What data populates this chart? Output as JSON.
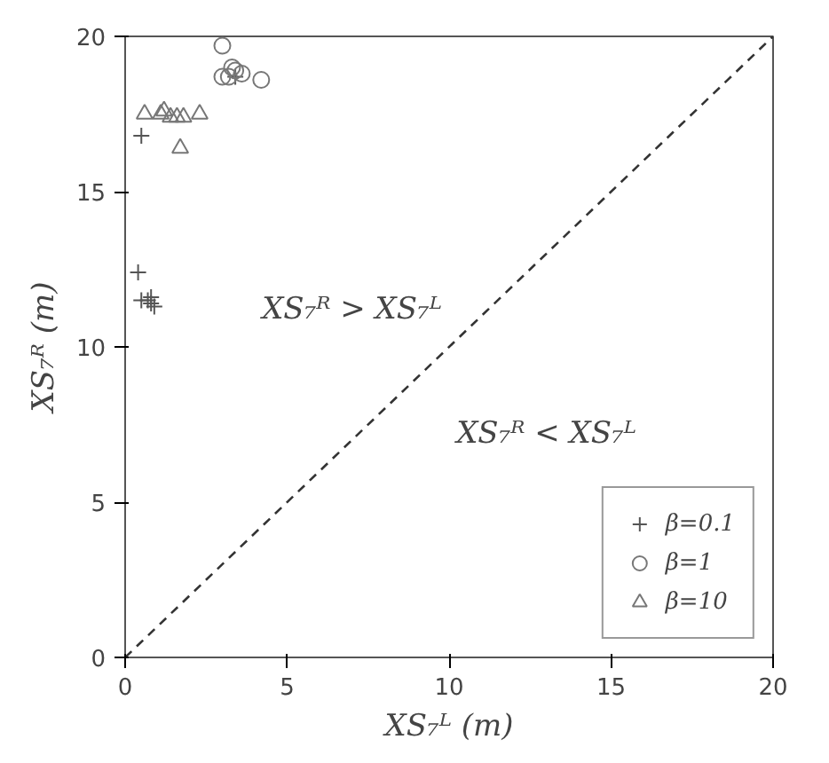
{
  "chart_data": {
    "type": "scatter",
    "xlabel": "XS₇ᴸ (m)",
    "ylabel": "XS₇ᴿ (m)",
    "xlim": [
      0,
      20
    ],
    "ylim": [
      0,
      20
    ],
    "xticks": [
      0,
      5,
      10,
      15,
      20
    ],
    "yticks": [
      0,
      5,
      10,
      15,
      20
    ],
    "grid": false,
    "legend": "bottom right",
    "annotations": [
      "XS₇ᴿ > XS₇ᴸ",
      "XS₇ᴿ < XS₇ᴸ"
    ],
    "series": [
      {
        "name": "β=0.1",
        "color": "#555555",
        "marker": "cross",
        "x": [
          0.5,
          0.4,
          0.5,
          0.8,
          0.8,
          0.9,
          0.7,
          3.4
        ],
        "values": [
          16.8,
          12.4,
          11.5,
          11.6,
          11.4,
          11.3,
          11.5,
          18.7
        ]
      },
      {
        "name": "β=1",
        "color": "#777777",
        "marker": "circle",
        "x": [
          3.0,
          3.0,
          3.2,
          3.4,
          3.6,
          4.2,
          3.3
        ],
        "values": [
          19.7,
          18.7,
          18.7,
          18.9,
          18.8,
          18.6,
          19.0
        ]
      },
      {
        "name": "β=10",
        "color": "#777777",
        "marker": "triangle",
        "x": [
          0.6,
          1.2,
          1.4,
          1.6,
          1.8,
          2.3,
          1.7,
          1.1
        ],
        "values": [
          17.5,
          17.6,
          17.4,
          17.4,
          17.4,
          17.5,
          16.4,
          17.5
        ]
      },
      {
        "type": "line",
        "color": "#333333",
        "line_style": "dashed",
        "x": [
          0,
          20
        ],
        "values": [
          0,
          20
        ]
      }
    ]
  }
}
